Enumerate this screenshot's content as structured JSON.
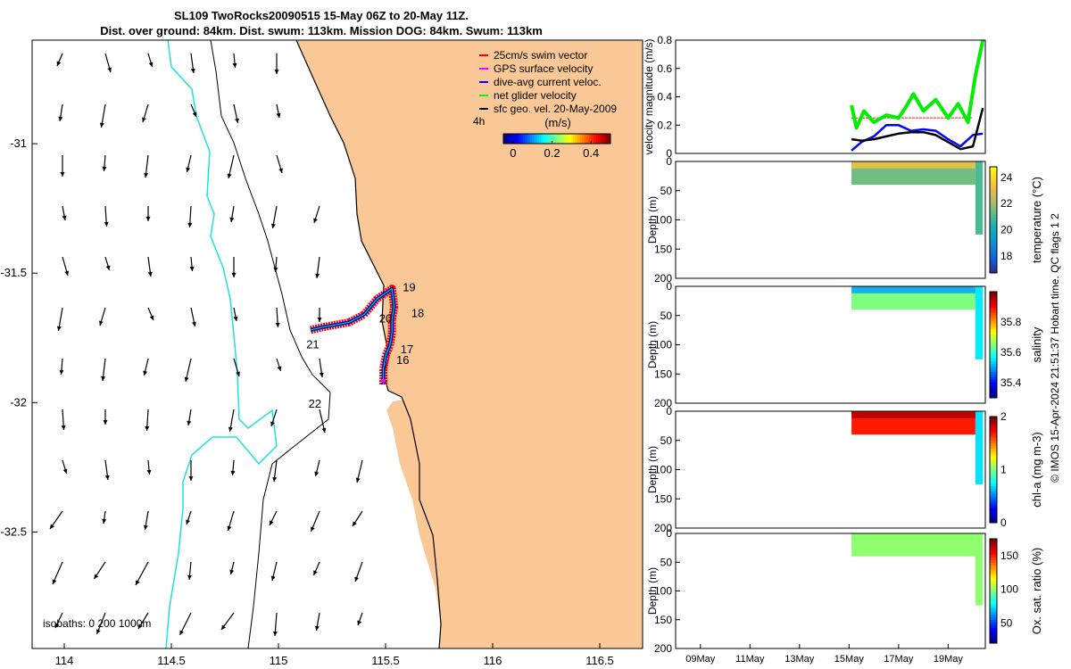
{
  "header": {
    "title_line1": "SL109 TwoRocks20090515 15-May 06Z to 20-May 11Z.",
    "title_line2": "Dist. over ground: 84km. Dist. swum: 113km. Mission DOG: 84km. Swum: 113km"
  },
  "colors": {
    "land": "#f9c896",
    "isobath_0": "#000000",
    "isobath_200": "#000000",
    "isobath_1000": "#20e0e0",
    "swim_vector": "#ff0000",
    "gps_surface": "#ff00ff",
    "dive_avg": "#0000ff",
    "net_glider": "#00ff00",
    "sfc_geo": "#000000"
  },
  "chart_data": [
    {
      "type": "map",
      "x_ticks": [
        "114",
        "114.5",
        "115",
        "115.5",
        "116",
        "116.5"
      ],
      "y_ticks": [
        "-31",
        "-31.5",
        "-32",
        "-32.5"
      ],
      "xlim": [
        113.85,
        116.7
      ],
      "ylim": [
        -32.95,
        -30.6
      ],
      "legend": [
        {
          "label": "25cm/s swim vector",
          "color": "#ff0000"
        },
        {
          "label": "GPS surface velocity",
          "color": "#ff00ff"
        },
        {
          "label": "dive-avg current veloc.",
          "color": "#0000ff"
        },
        {
          "label": "net glider velocity",
          "color": "#00ff00"
        },
        {
          "label": "sfc geo. vel. 20-May-2009",
          "color": "#000000"
        }
      ],
      "legend_placement": "top-right",
      "arrow_label": "4h",
      "colorbar_title": "(m/s)",
      "colorbar_ticks": [
        "0",
        "0.2",
        "0.4"
      ],
      "colorbar_range": [
        -0.05,
        0.5
      ],
      "isobath_label": "isobaths: 0   200  1000m",
      "day_labels": [
        {
          "day": "16",
          "lon": 115.55,
          "lat": -31.85
        },
        {
          "day": "17",
          "lon": 115.57,
          "lat": -31.81
        },
        {
          "day": "18",
          "lon": 115.62,
          "lat": -31.67
        },
        {
          "day": "19",
          "lon": 115.58,
          "lat": -31.57
        },
        {
          "day": "20",
          "lon": 115.47,
          "lat": -31.69
        },
        {
          "day": "21",
          "lon": 115.13,
          "lat": -31.79
        },
        {
          "day": "22",
          "lon": 115.14,
          "lat": -32.02
        }
      ],
      "track": [
        [
          115.49,
          -31.93
        ],
        [
          115.49,
          -31.87
        ],
        [
          115.5,
          -31.82
        ],
        [
          115.52,
          -31.78
        ],
        [
          115.53,
          -31.73
        ],
        [
          115.53,
          -31.68
        ],
        [
          115.54,
          -31.63
        ],
        [
          115.53,
          -31.56
        ],
        [
          115.46,
          -31.6
        ],
        [
          115.4,
          -31.66
        ],
        [
          115.33,
          -31.69
        ],
        [
          115.2,
          -31.71
        ],
        [
          115.15,
          -31.72
        ]
      ],
      "geo_vectors_note": "surface geostrophic velocity arrows pointing mostly southward"
    },
    {
      "type": "line",
      "ylabel": "velocity magnitude (m/s)",
      "ylim": [
        0,
        0.8
      ],
      "yticks": [
        "0",
        "0.2",
        "0.4",
        "0.6",
        "0.8"
      ],
      "x_range_days": [
        8,
        20.5
      ],
      "series": [
        {
          "color": "#ff6060",
          "x": [
            15.1,
            15.5,
            16,
            16.5,
            17,
            17.5,
            18,
            18.5,
            19,
            19.5,
            20
          ],
          "values": [
            0.25,
            0.25,
            0.25,
            0.25,
            0.25,
            0.25,
            0.25,
            0.25,
            0.25,
            0.25,
            0.25
          ]
        },
        {
          "color": "#00ee00",
          "x": [
            15.1,
            15.3,
            15.6,
            16,
            16.5,
            17,
            17.3,
            17.6,
            18,
            18.5,
            19,
            19.4,
            19.8,
            20.1,
            20.4
          ],
          "values": [
            0.34,
            0.18,
            0.3,
            0.22,
            0.27,
            0.25,
            0.33,
            0.42,
            0.3,
            0.38,
            0.25,
            0.35,
            0.22,
            0.55,
            0.8
          ]
        },
        {
          "color": "#0000ff",
          "x": [
            15.1,
            15.5,
            16,
            16.5,
            17,
            17.5,
            18,
            18.5,
            19,
            19.5,
            20,
            20.4
          ],
          "values": [
            0.02,
            0.08,
            0.12,
            0.2,
            0.2,
            0.16,
            0.17,
            0.16,
            0.1,
            0.05,
            0.13,
            0.14
          ]
        },
        {
          "color": "#000000",
          "x": [
            15.1,
            15.5,
            16,
            16.5,
            17,
            17.5,
            18,
            18.5,
            19,
            19.5,
            20,
            20.4
          ],
          "values": [
            0.1,
            0.09,
            0.1,
            0.12,
            0.14,
            0.15,
            0.15,
            0.13,
            0.08,
            0.03,
            0.05,
            0.32
          ]
        }
      ]
    },
    {
      "type": "heatmap",
      "ylabel": "Depth (m)",
      "clabel": "temperature (°C)",
      "yticks": [
        "0",
        "50",
        "100",
        "150",
        "200"
      ],
      "cticks": [
        "18",
        "20",
        "22",
        "24"
      ],
      "crange": [
        16.7,
        24.8
      ],
      "colormap": "parula",
      "segments": [
        {
          "x0": 15.1,
          "x1": 20.1,
          "depth": 40,
          "value": 21.5
        },
        {
          "x0": 20.1,
          "x1": 20.4,
          "depth": 125,
          "value": 21
        }
      ],
      "surface_value": 23.5
    },
    {
      "type": "heatmap",
      "ylabel": "Depth (m)",
      "clabel": "salinity",
      "yticks": [
        "0",
        "50",
        "100",
        "150",
        "200"
      ],
      "cticks": [
        "35.4",
        "35.6",
        "35.8"
      ],
      "crange": [
        35.3,
        36.0
      ],
      "colormap": "jet",
      "segments": [
        {
          "x0": 15.1,
          "x1": 20.1,
          "depth": 40,
          "value": 35.65
        },
        {
          "x0": 20.1,
          "x1": 20.4,
          "depth": 125,
          "value": 35.55
        }
      ],
      "surface_value": 35.5
    },
    {
      "type": "heatmap",
      "ylabel": "Depth (m)",
      "clabel": "chl-a (mg m-3)",
      "yticks": [
        "0",
        "50",
        "100",
        "150",
        "200"
      ],
      "cticks": [
        "0",
        "1",
        "2"
      ],
      "crange": [
        0,
        2
      ],
      "colormap": "jet",
      "segments": [
        {
          "x0": 15.1,
          "x1": 20.1,
          "depth": 40,
          "value": 1.7
        },
        {
          "x0": 20.1,
          "x1": 20.4,
          "depth": 125,
          "value": 0.7
        }
      ],
      "surface_value": 1.9
    },
    {
      "type": "heatmap",
      "ylabel": "Depth (m)",
      "clabel": "Ox. sat. ratio (%)",
      "yticks": [
        "0",
        "50",
        "100",
        "150",
        "200"
      ],
      "cticks": [
        "50",
        "100",
        "150"
      ],
      "crange": [
        20,
        175
      ],
      "colormap": "jet",
      "segments": [
        {
          "x0": 15.1,
          "x1": 20.1,
          "depth": 40,
          "value": 100
        },
        {
          "x0": 20.1,
          "x1": 20.4,
          "depth": 125,
          "value": 100
        }
      ],
      "surface_value": 100,
      "xticks": [
        {
          "label": "09May",
          "day": 9
        },
        {
          "label": "11May",
          "day": 11
        },
        {
          "label": "13May",
          "day": 13
        },
        {
          "label": "15May",
          "day": 15
        },
        {
          "label": "17May",
          "day": 17
        },
        {
          "label": "19May",
          "day": 19
        }
      ]
    }
  ],
  "footer": {
    "credit": "© IMOS 15-Apr-2024 21:51:37 Hobart time. QC flags 1  2"
  }
}
